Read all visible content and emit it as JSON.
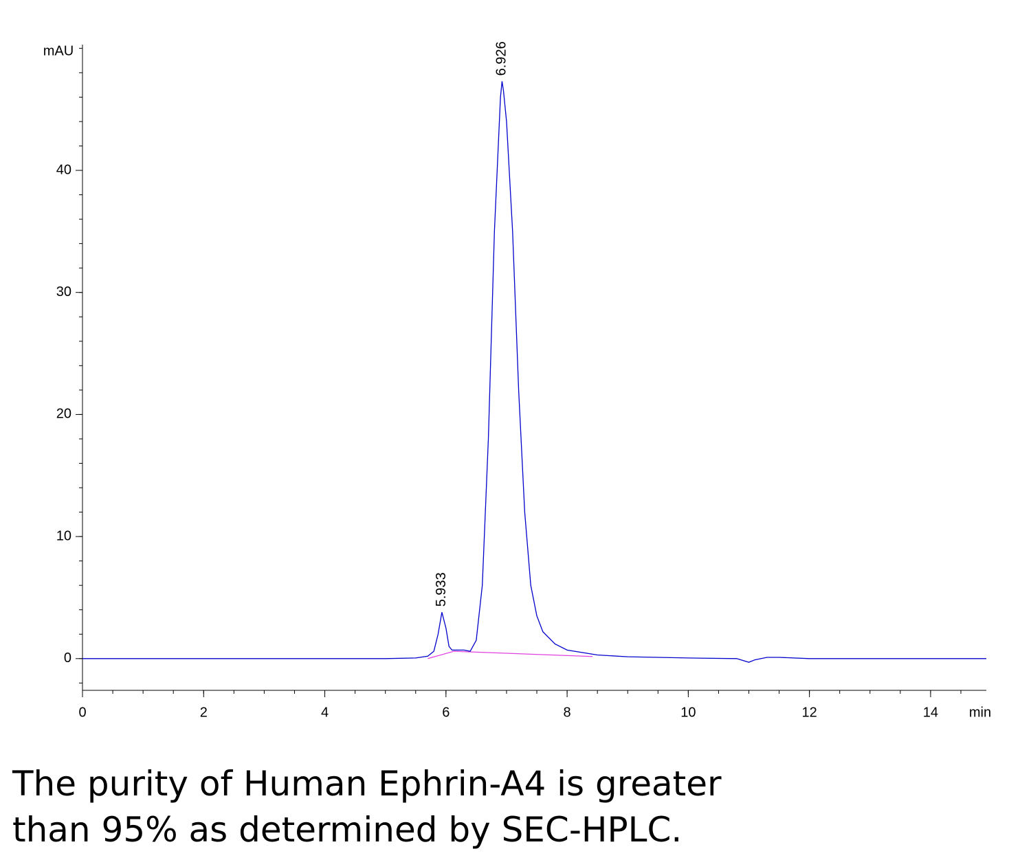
{
  "chart_data": {
    "type": "line",
    "x_label": "min",
    "y_label": "mAU",
    "xlim": [
      0,
      14.92
    ],
    "ylim": [
      -2.6,
      50.3
    ],
    "xticks": [
      0,
      2,
      4,
      6,
      8,
      10,
      12,
      14
    ],
    "yticks": [
      0,
      10,
      20,
      30,
      40
    ],
    "series": [
      {
        "name": "signal",
        "color": "#0000cc",
        "x": [
          0,
          5.0,
          5.5,
          5.7,
          5.8,
          5.87,
          5.933,
          6.0,
          6.05,
          6.1,
          6.2,
          6.3,
          6.4,
          6.5,
          6.6,
          6.7,
          6.8,
          6.9,
          6.926,
          6.95,
          7.0,
          7.1,
          7.2,
          7.3,
          7.4,
          7.5,
          7.6,
          7.8,
          8.0,
          8.5,
          9.0,
          10.0,
          10.8,
          11.0,
          11.1,
          11.3,
          11.5,
          12.0,
          14.92
        ],
        "values": [
          0,
          0,
          0.05,
          0.2,
          0.6,
          2.0,
          3.8,
          2.5,
          1.0,
          0.7,
          0.7,
          0.7,
          0.6,
          1.5,
          6,
          18,
          35,
          46,
          47.3,
          46.5,
          44,
          35,
          22,
          12,
          6,
          3.5,
          2.2,
          1.2,
          0.7,
          0.3,
          0.15,
          0.05,
          0,
          -0.3,
          -0.1,
          0.1,
          0.1,
          0,
          0
        ]
      },
      {
        "name": "baseline",
        "color": "#e040e0",
        "x": [
          5.7,
          6.13,
          8.42
        ],
        "values": [
          0,
          0.6,
          0.17
        ]
      }
    ],
    "peaks": [
      {
        "x": 5.933,
        "y": 3.8
      },
      {
        "x": 6.926,
        "y": 47.3
      }
    ]
  },
  "caption": [
    "The purity of Human Ephrin-A4 is greater",
    "than 95% as determined by SEC-HPLC."
  ]
}
